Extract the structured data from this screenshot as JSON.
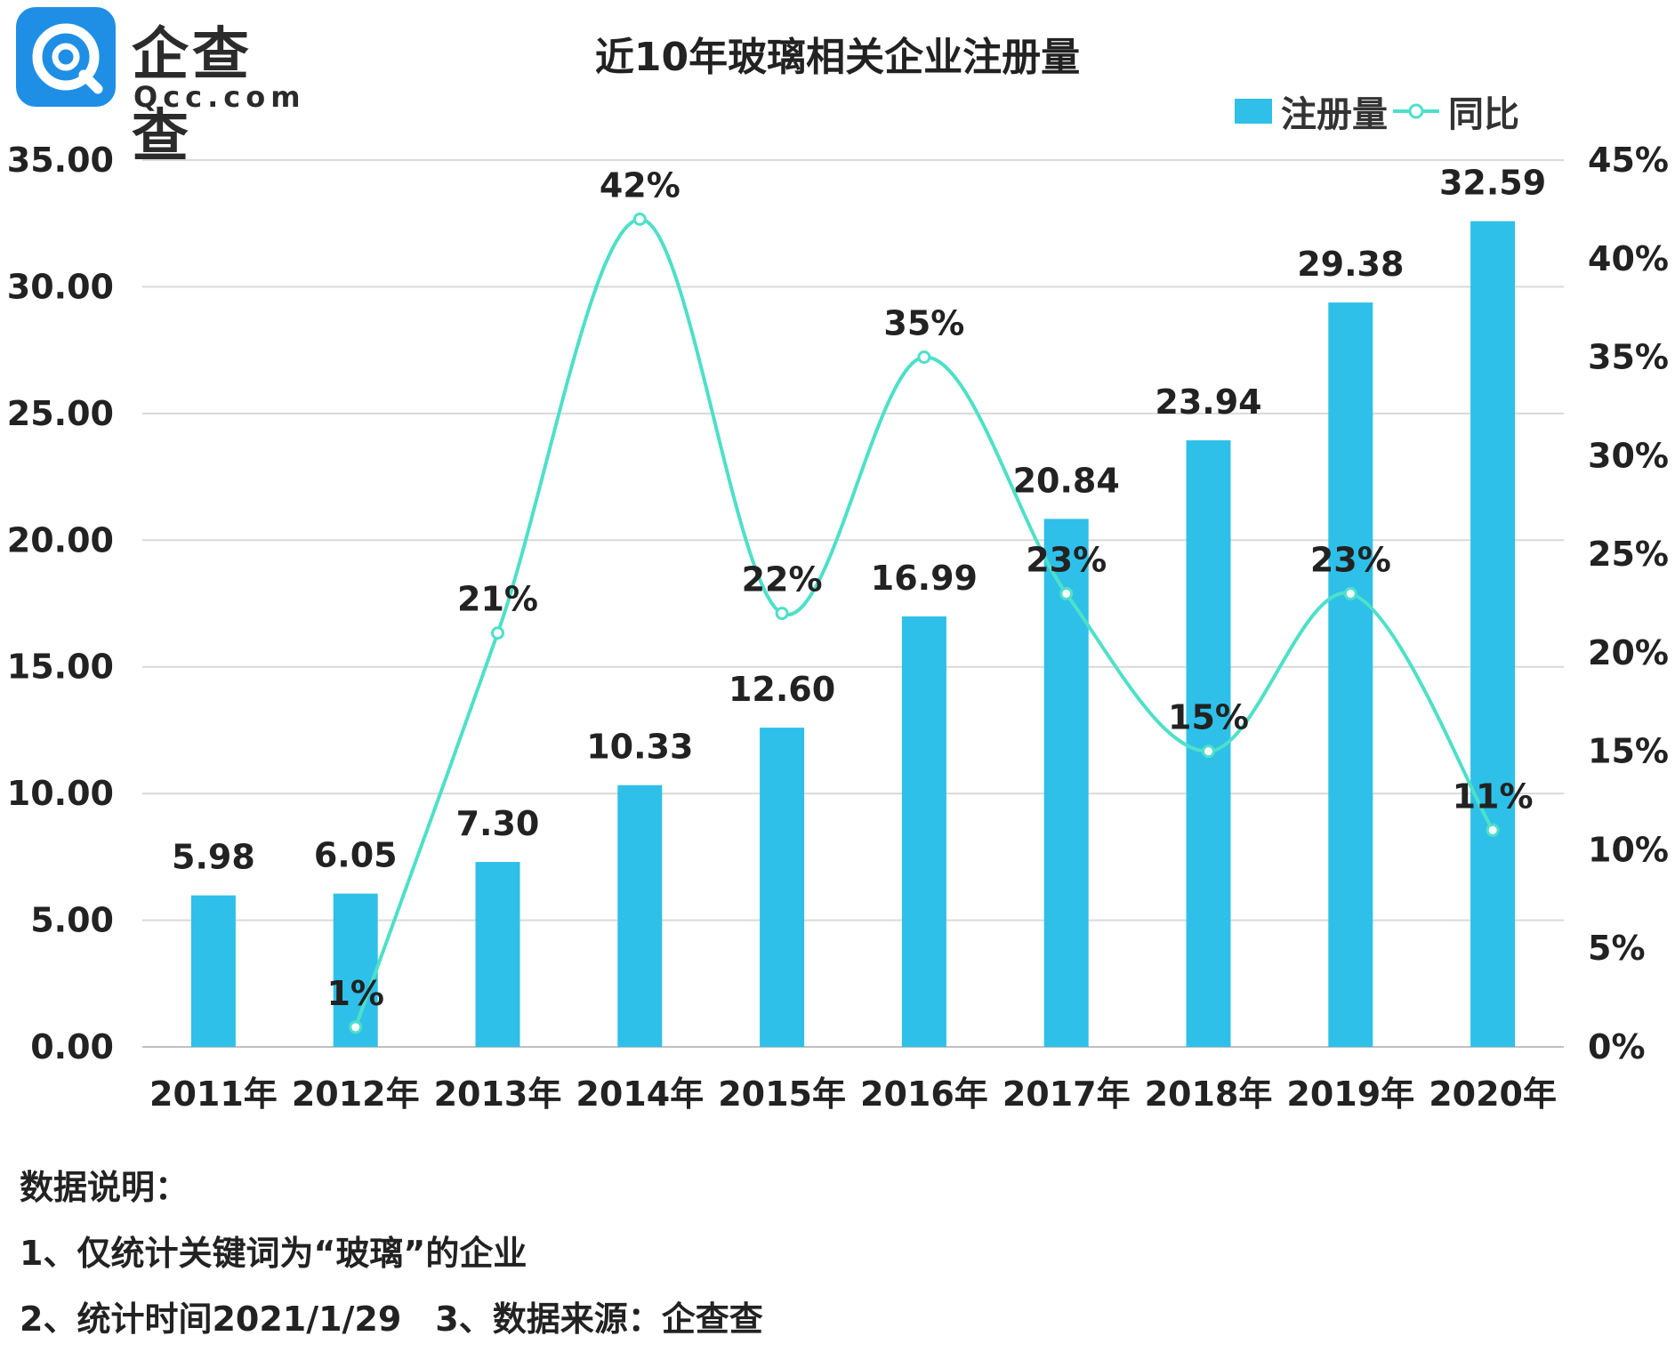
{
  "logo": {
    "name": "企查查",
    "url": "Qcc.com"
  },
  "title": "近10年玻璃相关企业注册量",
  "legend": {
    "bar": "注册量",
    "line": "同比"
  },
  "colors": {
    "bar": "#2ec0e8",
    "line": "#4ee0c8",
    "grid": "#d9d9d9",
    "logo": "#1f8fe6"
  },
  "chart_data": {
    "type": "bar",
    "categories": [
      "2011年",
      "2012年",
      "2013年",
      "2014年",
      "2015年",
      "2016年",
      "2017年",
      "2018年",
      "2019年",
      "2020年"
    ],
    "series": [
      {
        "name": "注册量",
        "type": "bar",
        "axis": "left",
        "values": [
          5.98,
          6.05,
          7.3,
          10.33,
          12.6,
          16.99,
          20.84,
          23.94,
          29.38,
          32.59
        ],
        "labels": [
          "5.98",
          "6.05",
          "7.30",
          "10.33",
          "12.60",
          "16.99",
          "20.84",
          "23.94",
          "29.38",
          "32.59"
        ]
      },
      {
        "name": "同比",
        "type": "line",
        "axis": "right",
        "smooth": true,
        "values": [
          null,
          1,
          21,
          42,
          22,
          35,
          23,
          15,
          23,
          11
        ],
        "labels": [
          null,
          "1%",
          "21%",
          "42%",
          "22%",
          "35%",
          "23%",
          "15%",
          "23%",
          "11%"
        ]
      }
    ],
    "ylim": [
      0,
      35
    ],
    "yticks": [
      "0.00",
      "5.00",
      "10.00",
      "15.00",
      "20.00",
      "25.00",
      "30.00",
      "35.00"
    ],
    "y2lim": [
      0,
      45
    ],
    "y2ticks": [
      "0%",
      "5%",
      "10%",
      "15%",
      "20%",
      "25%",
      "30%",
      "35%",
      "40%",
      "45%"
    ],
    "grid": true,
    "legend_position": "top-right"
  },
  "notes": [
    "数据说明：",
    "1、仅统计关键词为“玻璃”的企业",
    "2、统计时间2021/1/29　3、数据来源：企查查"
  ]
}
